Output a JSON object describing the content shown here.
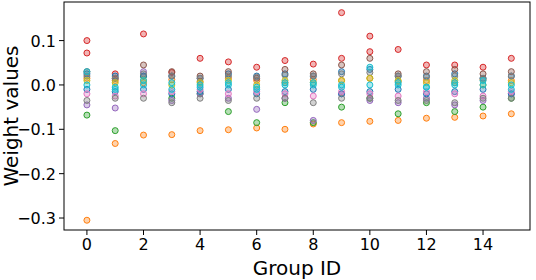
{
  "chart_data": {
    "type": "scatter",
    "x_label": "Group ID",
    "y_label": "Weight values",
    "xlim": [
      -0.81,
      15.66
    ],
    "ylim": [
      -0.327,
      0.187
    ],
    "xticks": [
      0,
      2,
      4,
      6,
      8,
      10,
      12,
      14
    ],
    "yticks": [
      {
        "value": -0.3,
        "label": "−0.3"
      },
      {
        "value": -0.2,
        "label": "−0.2"
      },
      {
        "value": -0.1,
        "label": "−0.1"
      },
      {
        "value": 0,
        "label": "0.0"
      },
      0.1
    ],
    "grid": false,
    "marker": "circle",
    "series": [
      {
        "color": "#ff7f0e",
        "x": [
          0,
          1,
          2,
          3,
          4,
          5,
          6,
          7,
          8,
          9,
          10,
          11,
          12,
          13,
          14,
          15,
          0,
          1,
          2,
          3,
          4,
          5,
          6,
          7,
          8,
          9,
          10,
          11,
          12,
          13,
          14,
          15
        ],
        "values": [
          -0.305,
          -0.132,
          -0.113,
          -0.112,
          -0.103,
          -0.101,
          -0.097,
          -0.1,
          -0.088,
          -0.085,
          -0.082,
          -0.08,
          -0.075,
          -0.073,
          -0.07,
          -0.065,
          0.015,
          0.01,
          0.005,
          0.012,
          0.008,
          0.015,
          0.01,
          0.005,
          0.012,
          0.01,
          0.015,
          0.008,
          0.01,
          0.005,
          0.012,
          0.01
        ]
      },
      {
        "color": "#d62728",
        "x": [
          0,
          1,
          2,
          3,
          4,
          5,
          6,
          7,
          8,
          9,
          10,
          11,
          12,
          13,
          14,
          15,
          0,
          10,
          9
        ],
        "values": [
          0.1,
          0.025,
          0.115,
          0.028,
          0.06,
          0.052,
          0.04,
          0.055,
          0.047,
          0.163,
          0.11,
          0.08,
          0.045,
          0.045,
          0.04,
          0.06,
          0.072,
          0.075,
          0.06
        ]
      },
      {
        "color": "#2ca02c",
        "x": [
          0,
          1,
          2,
          3,
          4,
          5,
          6,
          7,
          8,
          9,
          10,
          11,
          12,
          13,
          14,
          15
        ],
        "values": [
          -0.068,
          -0.103,
          0.02,
          -0.03,
          -0.02,
          -0.06,
          -0.085,
          -0.04,
          -0.085,
          -0.05,
          -0.03,
          -0.065,
          -0.04,
          -0.06,
          -0.05,
          -0.03
        ]
      },
      {
        "color": "#9467bd",
        "x": [
          0,
          1,
          2,
          3,
          4,
          5,
          6,
          7,
          8,
          9,
          10,
          11,
          12,
          13,
          14,
          15
        ],
        "values": [
          -0.045,
          -0.052,
          0.03,
          -0.035,
          -0.02,
          -0.03,
          -0.055,
          -0.03,
          -0.08,
          -0.02,
          -0.035,
          -0.04,
          -0.03,
          -0.045,
          -0.035,
          -0.02
        ]
      },
      {
        "color": "#1f77b4",
        "x": [
          0,
          1,
          2,
          3,
          4,
          5,
          6,
          7,
          8,
          9,
          10,
          11,
          12,
          13,
          14,
          15,
          0,
          1,
          2,
          3,
          4,
          5,
          6,
          7,
          8,
          9,
          10,
          11,
          12,
          13,
          14,
          15
        ],
        "values": [
          0.025,
          0.02,
          0.02,
          0.02,
          0.015,
          0.025,
          0.02,
          0.025,
          0.02,
          0.03,
          0.035,
          0.02,
          0.02,
          0.025,
          0.015,
          0.02,
          -0.01,
          -0.015,
          -0.01,
          -0.02,
          -0.015,
          -0.01,
          -0.02,
          -0.015,
          -0.01,
          -0.02,
          -0.015,
          -0.01,
          -0.02,
          -0.015,
          -0.01,
          -0.02
        ]
      },
      {
        "color": "#8c564b",
        "x": [
          0,
          1,
          2,
          3,
          4,
          5,
          6,
          7,
          8,
          9,
          10,
          11,
          12,
          13,
          14,
          15
        ],
        "values": [
          0.03,
          0.015,
          0.045,
          0.03,
          0.02,
          0.03,
          0.015,
          0.035,
          0.025,
          0.045,
          0.06,
          0.025,
          0.03,
          0.035,
          0.025,
          0.03
        ]
      },
      {
        "color": "#e377c2",
        "x": [
          0,
          1,
          2,
          3,
          4,
          5,
          6,
          7,
          8,
          9,
          10,
          11,
          12,
          13,
          14,
          15
        ],
        "values": [
          -0.02,
          -0.025,
          -0.02,
          -0.015,
          -0.01,
          -0.02,
          -0.015,
          -0.02,
          -0.025,
          -0.015,
          -0.02,
          -0.025,
          -0.015,
          -0.02,
          -0.025,
          -0.015
        ]
      },
      {
        "color": "#7f7f7f",
        "x": [
          0,
          1,
          2,
          3,
          4,
          5,
          6,
          7,
          8,
          9,
          10,
          11,
          12,
          13,
          14,
          15,
          0,
          1,
          2,
          3,
          4,
          5,
          6,
          7,
          8,
          9,
          10,
          11,
          12,
          13,
          14,
          15
        ],
        "values": [
          -0.035,
          -0.03,
          -0.03,
          -0.04,
          -0.03,
          -0.035,
          -0.03,
          -0.03,
          -0.04,
          -0.03,
          -0.03,
          -0.035,
          -0.035,
          -0.04,
          -0.03,
          -0.03,
          0.02,
          0.015,
          0.025,
          0.02,
          0.015,
          0.02,
          0.018,
          0.022,
          0.02,
          0.025,
          0.028,
          0.02,
          0.018,
          0.02,
          0.015,
          0.02
        ]
      },
      {
        "color": "#bcbd22",
        "x": [
          0,
          1,
          2,
          3,
          4,
          5,
          6,
          7,
          8,
          9,
          10,
          11,
          12,
          13,
          14,
          15
        ],
        "values": [
          0.01,
          0.005,
          0.01,
          0.0,
          0.005,
          0.01,
          0.0,
          0.01,
          0.005,
          0.01,
          0.015,
          0.01,
          0.005,
          0.01,
          0.0,
          0.005
        ]
      },
      {
        "color": "#17becf",
        "x": [
          0,
          1,
          2,
          3,
          4,
          5,
          6,
          7,
          8,
          9,
          10,
          11,
          12,
          13,
          14,
          15,
          0,
          1,
          2,
          3,
          4,
          5,
          6,
          7,
          8,
          9,
          10,
          11,
          12,
          13,
          14,
          15
        ],
        "values": [
          0.0,
          -0.01,
          0.0,
          0.005,
          -0.005,
          0.0,
          -0.005,
          0.005,
          0.0,
          -0.005,
          0.0,
          0.005,
          -0.005,
          0.0,
          0.01,
          -0.01,
          0.03,
          -0.005,
          0.01,
          -0.01,
          0.0,
          0.005,
          -0.01,
          0.0,
          0.005,
          0.0,
          0.04,
          0.0,
          -0.005,
          0.005,
          0.0,
          0.0
        ]
      }
    ]
  }
}
